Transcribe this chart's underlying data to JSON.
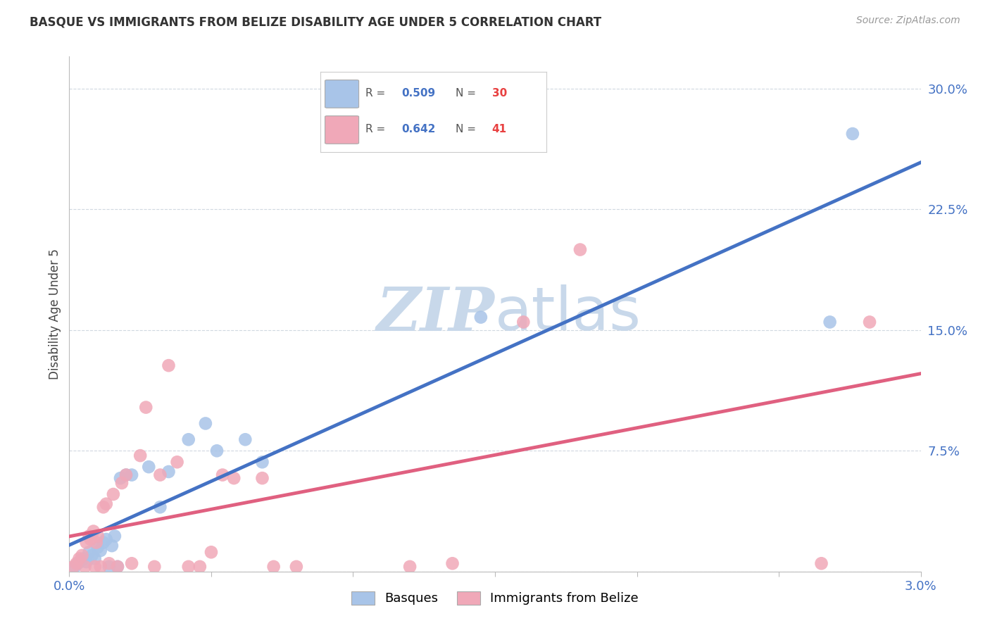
{
  "title": "BASQUE VS IMMIGRANTS FROM BELIZE DISABILITY AGE UNDER 5 CORRELATION CHART",
  "source": "Source: ZipAtlas.com",
  "ylabel": "Disability Age Under 5",
  "xlim": [
    0.0,
    0.03
  ],
  "ylim": [
    0.0,
    0.32
  ],
  "xticks": [
    0.0,
    0.005,
    0.01,
    0.015,
    0.02,
    0.025,
    0.03
  ],
  "xtick_labels": [
    "0.0%",
    "",
    "",
    "",
    "",
    "",
    "3.0%"
  ],
  "ytick_labels_right": [
    "",
    "7.5%",
    "15.0%",
    "22.5%",
    "30.0%"
  ],
  "ytick_positions_right": [
    0.0,
    0.075,
    0.15,
    0.225,
    0.3
  ],
  "basque_color": "#a8c4e8",
  "belize_color": "#f0a8b8",
  "trendline_basque_color": "#4472c4",
  "trendline_belize_color": "#e06080",
  "watermark_zip": "ZIP",
  "watermark_atlas": "atlas",
  "watermark_color": "#c8d8ea",
  "background_color": "#ffffff",
  "grid_color": "#d0d8e0",
  "basque_x": [
    0.0002,
    0.0003,
    0.0004,
    0.0005,
    0.0006,
    0.0007,
    0.0008,
    0.0009,
    0.001,
    0.0011,
    0.0012,
    0.0013,
    0.0014,
    0.0015,
    0.0016,
    0.0017,
    0.0018,
    0.002,
    0.0022,
    0.0028,
    0.0032,
    0.0035,
    0.0042,
    0.0048,
    0.0052,
    0.0062,
    0.0068,
    0.0145,
    0.0268,
    0.0276
  ],
  "basque_y": [
    0.003,
    0.005,
    0.007,
    0.008,
    0.006,
    0.012,
    0.01,
    0.008,
    0.015,
    0.013,
    0.018,
    0.02,
    0.003,
    0.016,
    0.022,
    0.003,
    0.058,
    0.06,
    0.06,
    0.065,
    0.04,
    0.062,
    0.082,
    0.092,
    0.075,
    0.082,
    0.068,
    0.158,
    0.155,
    0.272
  ],
  "belize_x": [
    0.00015,
    0.00025,
    0.00035,
    0.00045,
    0.00055,
    0.0006,
    0.0007,
    0.00075,
    0.00085,
    0.0009,
    0.00095,
    0.001,
    0.0011,
    0.0012,
    0.0013,
    0.0014,
    0.00155,
    0.0017,
    0.00185,
    0.002,
    0.0022,
    0.0025,
    0.0027,
    0.003,
    0.0032,
    0.0035,
    0.0038,
    0.0042,
    0.0046,
    0.005,
    0.0054,
    0.0058,
    0.0068,
    0.0072,
    0.008,
    0.012,
    0.0135,
    0.016,
    0.018,
    0.0265,
    0.0282
  ],
  "belize_y": [
    0.003,
    0.005,
    0.008,
    0.01,
    0.003,
    0.018,
    0.022,
    0.02,
    0.025,
    0.003,
    0.018,
    0.022,
    0.003,
    0.04,
    0.042,
    0.005,
    0.048,
    0.003,
    0.055,
    0.06,
    0.005,
    0.072,
    0.102,
    0.003,
    0.06,
    0.128,
    0.068,
    0.003,
    0.003,
    0.012,
    0.06,
    0.058,
    0.058,
    0.003,
    0.003,
    0.003,
    0.005,
    0.155,
    0.2,
    0.005,
    0.155
  ]
}
